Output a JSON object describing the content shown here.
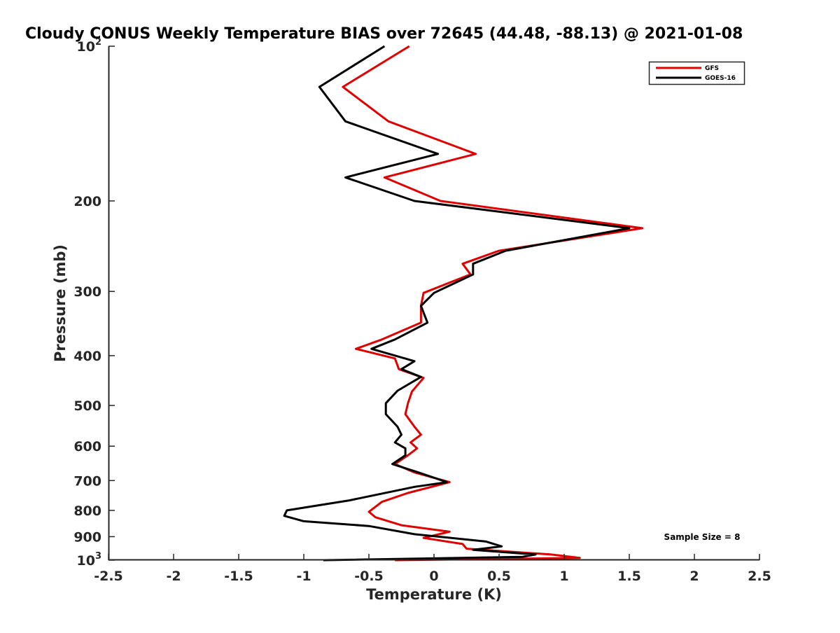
{
  "chart_data": {
    "type": "line",
    "title": "Cloudy CONUS Weekly Temperature BIAS over 72645 (44.48, -88.13) @ 2021-01-08",
    "xlabel": "Temperature (K)",
    "ylabel": "Pressure (mb)",
    "xlim": [
      -2.5,
      2.5
    ],
    "ylim": [
      100,
      1000
    ],
    "y_scale": "log",
    "y_reversed": true,
    "grid": false,
    "legend_position": "top-right",
    "x_ticks": [
      -2.5,
      -2,
      -1.5,
      -1,
      -0.5,
      0,
      0.5,
      1,
      1.5,
      2,
      2.5
    ],
    "x_tick_labels": [
      "-2.5",
      "-2",
      "-1.5",
      "-1",
      "-0.5",
      "0",
      "0.5",
      "1",
      "1.5",
      "2",
      "2.5"
    ],
    "y_ticks": [
      100,
      200,
      300,
      400,
      500,
      600,
      700,
      800,
      900,
      1000
    ],
    "y_tick_labels": [
      {
        "base": "10",
        "sup": "2"
      },
      {
        "base": "200"
      },
      {
        "base": "300"
      },
      {
        "base": "400"
      },
      {
        "base": "500"
      },
      {
        "base": "600"
      },
      {
        "base": "700"
      },
      {
        "base": "800"
      },
      {
        "base": "900"
      },
      {
        "base": "10",
        "sup": "3"
      }
    ],
    "annotation": "Sample Size = 8",
    "series": [
      {
        "name": "GFS",
        "color": "#e00000",
        "points": [
          [
            -0.19,
            100
          ],
          [
            -0.7,
            120
          ],
          [
            -0.35,
            140
          ],
          [
            0.32,
            162
          ],
          [
            -0.38,
            180
          ],
          [
            0.05,
            200
          ],
          [
            1.6,
            226
          ],
          [
            0.5,
            250
          ],
          [
            0.22,
            265
          ],
          [
            0.28,
            278
          ],
          [
            -0.08,
            302
          ],
          [
            -0.1,
            320
          ],
          [
            -0.1,
            345
          ],
          [
            -0.4,
            372
          ],
          [
            -0.6,
            388
          ],
          [
            -0.3,
            405
          ],
          [
            -0.27,
            425
          ],
          [
            -0.08,
            442
          ],
          [
            -0.17,
            470
          ],
          [
            -0.2,
            495
          ],
          [
            -0.22,
            520
          ],
          [
            -0.15,
            550
          ],
          [
            -0.1,
            570
          ],
          [
            -0.18,
            590
          ],
          [
            -0.13,
            606
          ],
          [
            -0.2,
            625
          ],
          [
            -0.3,
            650
          ],
          [
            -0.15,
            675
          ],
          [
            0.12,
            705
          ],
          [
            -0.2,
            740
          ],
          [
            -0.4,
            770
          ],
          [
            -0.5,
            805
          ],
          [
            -0.45,
            825
          ],
          [
            -0.25,
            855
          ],
          [
            0.12,
            880
          ],
          [
            -0.08,
            905
          ],
          [
            0.22,
            930
          ],
          [
            0.25,
            950
          ],
          [
            0.9,
            975
          ],
          [
            1.12,
            990
          ],
          [
            -0.3,
            1000
          ]
        ]
      },
      {
        "name": "GOES-16",
        "color": "#000000",
        "points": [
          [
            -0.38,
            100
          ],
          [
            -0.88,
            120
          ],
          [
            -0.68,
            140
          ],
          [
            0.03,
            162
          ],
          [
            -0.68,
            180
          ],
          [
            -0.15,
            200
          ],
          [
            1.5,
            226
          ],
          [
            0.55,
            250
          ],
          [
            0.3,
            265
          ],
          [
            0.3,
            278
          ],
          [
            0.0,
            302
          ],
          [
            -0.1,
            320
          ],
          [
            -0.05,
            345
          ],
          [
            -0.3,
            372
          ],
          [
            -0.48,
            388
          ],
          [
            -0.15,
            410
          ],
          [
            -0.25,
            425
          ],
          [
            -0.1,
            440
          ],
          [
            -0.28,
            468
          ],
          [
            -0.37,
            495
          ],
          [
            -0.37,
            520
          ],
          [
            -0.28,
            550
          ],
          [
            -0.25,
            570
          ],
          [
            -0.3,
            590
          ],
          [
            -0.22,
            606
          ],
          [
            -0.22,
            625
          ],
          [
            -0.32,
            650
          ],
          [
            -0.12,
            675
          ],
          [
            0.1,
            705
          ],
          [
            -0.15,
            720
          ],
          [
            -0.65,
            765
          ],
          [
            -1.13,
            800
          ],
          [
            -1.15,
            820
          ],
          [
            -1.0,
            840
          ],
          [
            -0.5,
            858
          ],
          [
            -0.15,
            890
          ],
          [
            0.4,
            920
          ],
          [
            0.52,
            940
          ],
          [
            0.3,
            955
          ],
          [
            0.78,
            975
          ],
          [
            0.68,
            985
          ],
          [
            -0.85,
            1000
          ]
        ]
      }
    ]
  }
}
